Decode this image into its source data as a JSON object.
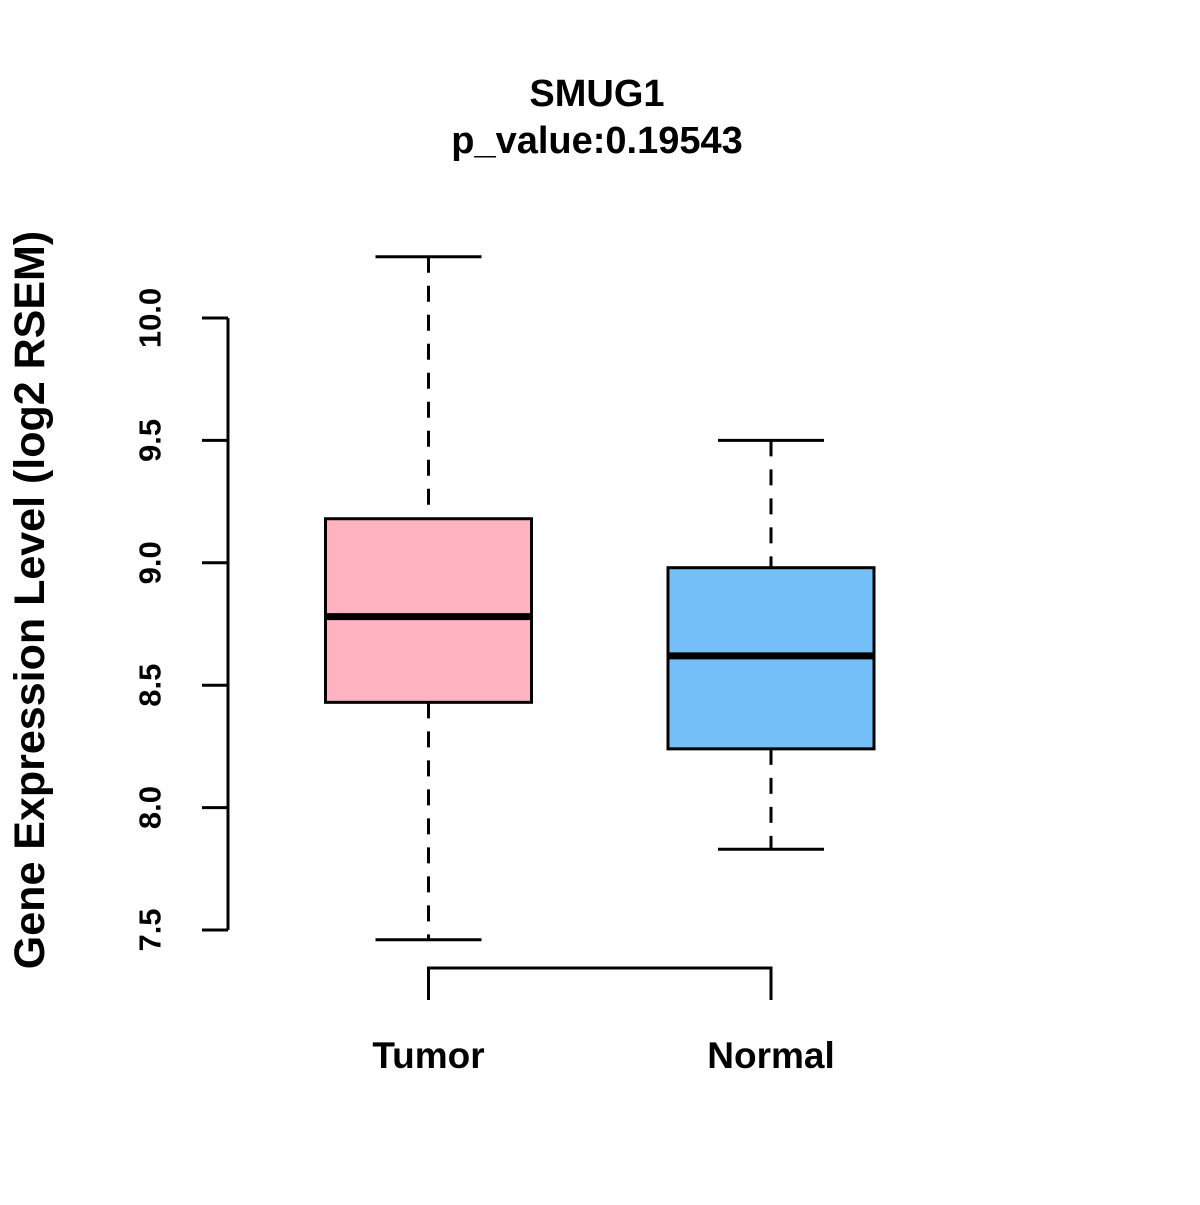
{
  "figure": {
    "background": "#FFFFFF",
    "foreground": "#000000"
  },
  "chart_data": {
    "type": "boxplot",
    "title": "SMUG1",
    "subtitle": "p_value:0.19543",
    "ylabel": "Gene Expression Level (log2 RSEM)",
    "xlabel": "",
    "ylim": [
      7.5,
      10.0
    ],
    "y_ticks": [
      7.5,
      8.0,
      8.5,
      9.0,
      9.5,
      10.0
    ],
    "y_tick_labels": [
      "7.5",
      "8.0",
      "8.5",
      "9.0",
      "9.5",
      "10.0"
    ],
    "categories": [
      "Tumor",
      "Normal"
    ],
    "grid": false,
    "legend_position": "none",
    "series": [
      {
        "name": "Tumor",
        "whisker_low": 7.46,
        "q1": 8.43,
        "median": 8.78,
        "q3": 9.18,
        "whisker_high": 10.25,
        "color": "#FFB3C1"
      },
      {
        "name": "Normal",
        "whisker_low": 7.83,
        "q1": 8.24,
        "median": 8.62,
        "q3": 8.98,
        "whisker_high": 9.5,
        "color": "#74BFF7"
      }
    ],
    "annotations": {
      "comparison_bracket": "below-axis bracket linking Tumor and Normal"
    }
  }
}
